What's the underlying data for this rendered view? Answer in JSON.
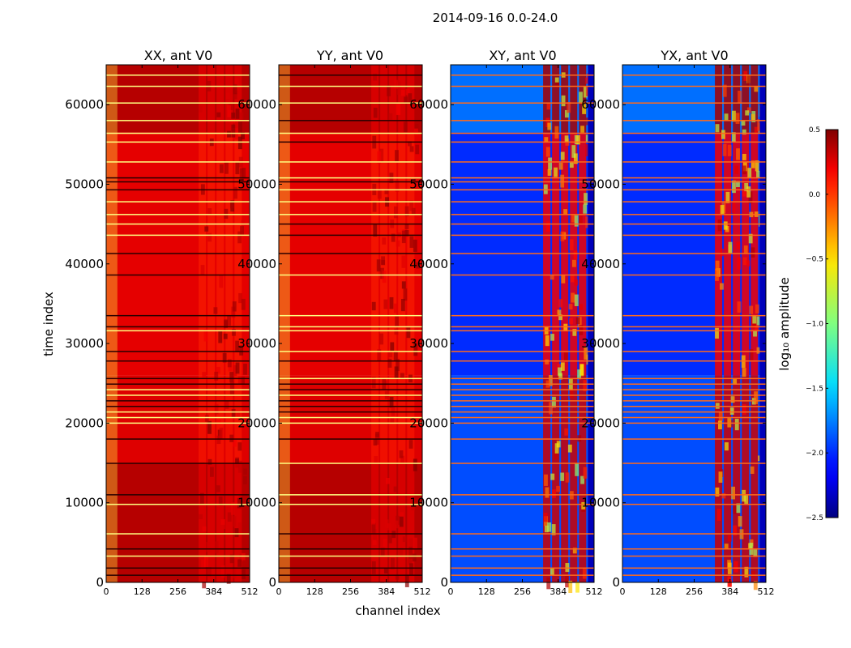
{
  "chart_data": {
    "type": "heatmap",
    "suptitle": "2014-09-16 0.0-24.0",
    "xlabel": "channel index",
    "ylabel": "time index",
    "xlim": [
      0,
      512
    ],
    "ylim": [
      0,
      65000
    ],
    "xticks": [
      0,
      128,
      256,
      384,
      512
    ],
    "yticks": [
      0,
      10000,
      20000,
      30000,
      40000,
      50000,
      60000
    ],
    "panels": [
      {
        "title": "XX, ant V0",
        "colormap": "hot",
        "show_yticks": true,
        "show_xlabel": false
      },
      {
        "title": "YY, ant V0",
        "colormap": "hot",
        "show_yticks": true,
        "show_xlabel": true
      },
      {
        "title": "XY, ant V0",
        "colormap": "jet",
        "show_yticks": true,
        "show_xlabel": false
      },
      {
        "title": "YX, ant V0",
        "colormap": "jet",
        "show_yticks": true,
        "show_xlabel": false
      }
    ],
    "colorbar": {
      "label": "log₁₀ amplitude",
      "min": -2.5,
      "max": 0.5,
      "ticks": [
        0.5,
        0.0,
        -0.5,
        -1.0,
        -1.5,
        -2.0,
        -2.5
      ],
      "tick_labels": [
        "0.5",
        "0.0",
        "−0.5",
        "−1.0",
        "−1.5",
        "−2.0",
        "−2.5"
      ]
    },
    "time_segments": [
      {
        "from": 0,
        "to": 15000,
        "auto_level": -0.05,
        "cross_level": -1.9
      },
      {
        "from": 15000,
        "to": 20000,
        "auto_level": -0.35,
        "cross_level": -1.9
      },
      {
        "from": 20000,
        "to": 26000,
        "auto_level": -0.35,
        "cross_level": -1.9,
        "flagged": true
      },
      {
        "from": 26000,
        "to": 56500,
        "auto_level": -0.4,
        "cross_level": -2.0
      },
      {
        "from": 56500,
        "to": 65000,
        "auto_level": -0.05,
        "cross_level": -1.8
      }
    ],
    "bright_channel_band": [
      330,
      490
    ],
    "flag_rows": [
      {
        "t": 900
      },
      {
        "t": 1800
      },
      {
        "t": 3300
      },
      {
        "t": 4200
      },
      {
        "t": 6100
      },
      {
        "t": 9800
      },
      {
        "t": 11000
      },
      {
        "t": 14950
      },
      {
        "t": 18000
      },
      {
        "t": 20000
      },
      {
        "t": 20700
      },
      {
        "t": 21400
      },
      {
        "t": 22100
      },
      {
        "t": 22800
      },
      {
        "t": 23500
      },
      {
        "t": 24200
      },
      {
        "t": 24900
      },
      {
        "t": 25600
      },
      {
        "t": 27800
      },
      {
        "t": 29000
      },
      {
        "t": 31600
      },
      {
        "t": 32100
      },
      {
        "t": 33500
      },
      {
        "t": 38600
      },
      {
        "t": 41300
      },
      {
        "t": 43600
      },
      {
        "t": 45000
      },
      {
        "t": 46200
      },
      {
        "t": 47800
      },
      {
        "t": 49300
      },
      {
        "t": 50300
      },
      {
        "t": 50800
      },
      {
        "t": 52800
      },
      {
        "t": 55300
      },
      {
        "t": 56400
      },
      {
        "t": 58000
      },
      {
        "t": 60200
      },
      {
        "t": 62300
      },
      {
        "t": 63700
      }
    ]
  }
}
